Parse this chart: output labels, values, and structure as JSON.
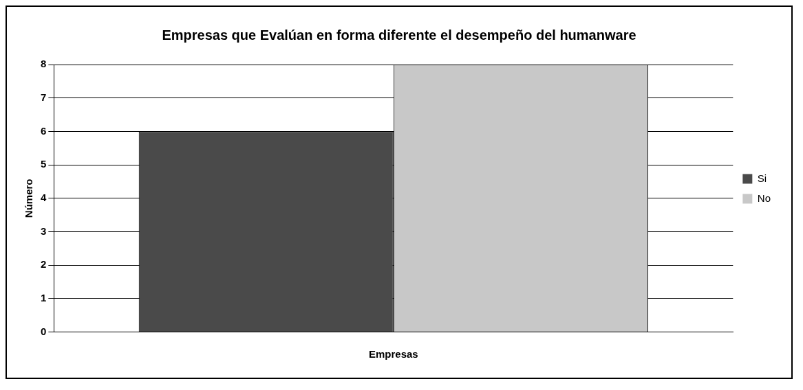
{
  "chart_data": {
    "type": "bar",
    "title": "Empresas que Evalúan en forma diferente el desempeño del humanware",
    "xlabel": "Empresas",
    "ylabel": "Número",
    "categories": [
      null
    ],
    "series": [
      {
        "name": "Si",
        "color": "#4a4a4a",
        "values": [
          6
        ]
      },
      {
        "name": "No",
        "color": "#c8c8c8",
        "values": [
          8
        ]
      }
    ],
    "ylim": [
      0,
      8
    ],
    "yticks": [
      0,
      1,
      2,
      3,
      4,
      5,
      6,
      7,
      8
    ],
    "grid": "y",
    "legend": "right"
  }
}
